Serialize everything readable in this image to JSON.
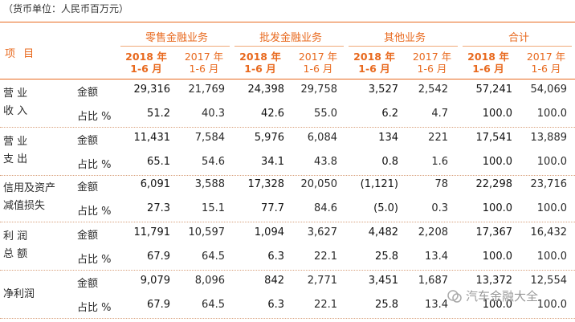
{
  "unit_note": "（货币单位：人民币百万元）",
  "item_header": "项 目",
  "groups": [
    "零售金融业务",
    "批发金融业务",
    "其他业务",
    "合计"
  ],
  "year_labels": {
    "current": [
      "2018 年",
      "1-6 月"
    ],
    "prior": [
      "2017 年",
      "1-6 月"
    ]
  },
  "rows": [
    {
      "label": [
        "营 业",
        "收 入"
      ],
      "amount_label": "金额",
      "ratio_label": "占比 %",
      "amount": [
        "29,316",
        "21,769",
        "24,398",
        "29,758",
        "3,527",
        "2,542",
        "57,241",
        "54,069"
      ],
      "ratio": [
        "51.2",
        "40.3",
        "42.6",
        "55.0",
        "6.2",
        "4.7",
        "100.0",
        "100.0"
      ]
    },
    {
      "label": [
        "营 业",
        "支 出"
      ],
      "amount_label": "金额",
      "ratio_label": "占比 %",
      "amount": [
        "11,431",
        "7,584",
        "5,976",
        "6,084",
        "134",
        "221",
        "17,541",
        "13,889"
      ],
      "ratio": [
        "65.1",
        "54.6",
        "34.1",
        "43.8",
        "0.8",
        "1.6",
        "100.0",
        "100.0"
      ]
    },
    {
      "label": [
        "信用及资产",
        "减值损失"
      ],
      "amount_label": "金额",
      "ratio_label": "占比 %",
      "amount": [
        "6,091",
        "3,588",
        "17,328",
        "20,050",
        "(1,121)",
        "78",
        "22,298",
        "23,716"
      ],
      "ratio": [
        "27.3",
        "15.1",
        "77.7",
        "84.6",
        "(5.0)",
        "0.3",
        "100.0",
        "100.0"
      ]
    },
    {
      "label": [
        "利 润",
        "总 额"
      ],
      "amount_label": "金额",
      "ratio_label": "占比 %",
      "amount": [
        "11,791",
        "10,597",
        "1,094",
        "3,627",
        "4,482",
        "2,208",
        "17,367",
        "16,432"
      ],
      "ratio": [
        "67.9",
        "64.5",
        "6.3",
        "22.1",
        "25.8",
        "13.4",
        "100.0",
        "100.0"
      ]
    },
    {
      "label": [
        "净利润"
      ],
      "amount_label": "金额",
      "ratio_label": "占比 %",
      "amount": [
        "9,079",
        "8,096",
        "842",
        "2,771",
        "3,451",
        "1,687",
        "13,372",
        "12,554"
      ],
      "ratio": [
        "67.9",
        "64.5",
        "6.3",
        "22.1",
        "25.8",
        "13.4",
        "100.0",
        "100.0"
      ]
    }
  ],
  "watermark": "汽车金融大全",
  "colors": {
    "accent": "#e8691e",
    "separator": "#d9a27e"
  }
}
